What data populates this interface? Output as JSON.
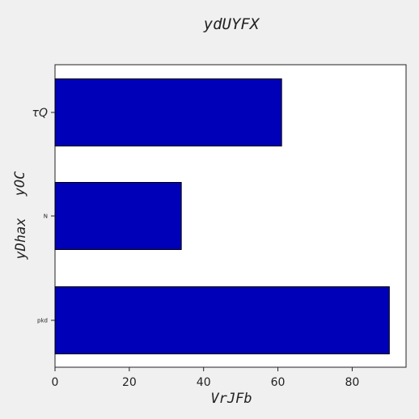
{
  "chart_data": {
    "type": "bar",
    "orientation": "horizontal",
    "title": "ydUYFX",
    "xlabel": "VrJFb",
    "ylabel_lines": [
      "yOC",
      "yDhax"
    ],
    "categories": [
      "τQ",
      "N",
      "pkd"
    ],
    "values": [
      61,
      34,
      90
    ],
    "xlim": [
      0,
      94.5
    ],
    "xticks": [
      0,
      20,
      40,
      60,
      80
    ],
    "grid": false,
    "legend": "none",
    "colors": {
      "bar_fill": "#0000b8",
      "bar_edge": "#000000",
      "plot_background": "#ffffff",
      "page_background": "#f0f0f0"
    }
  }
}
